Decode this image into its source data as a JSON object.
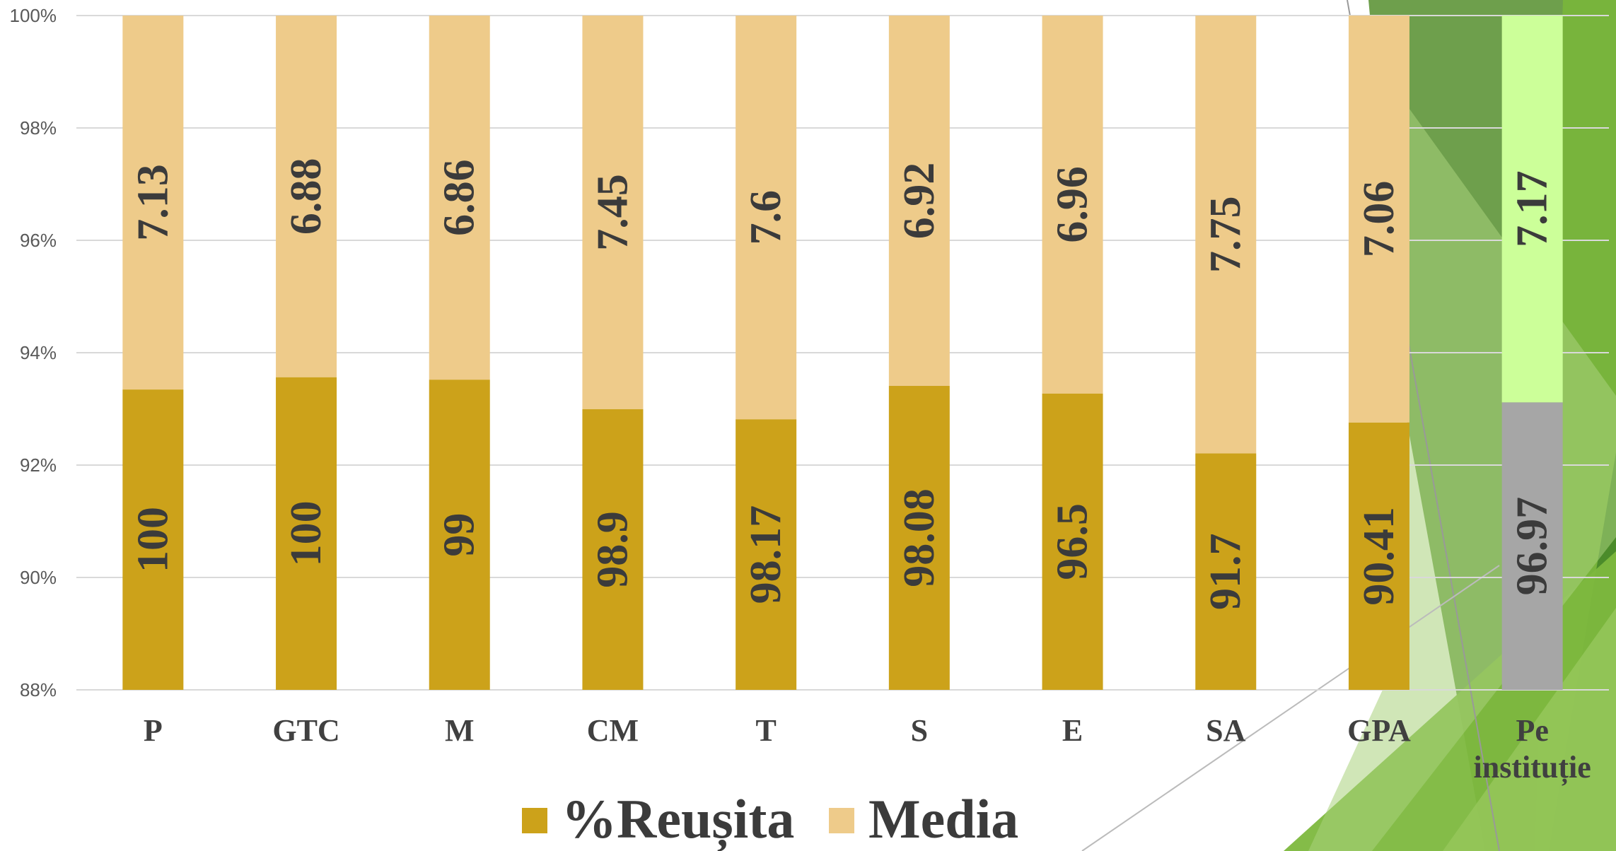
{
  "chart_data": {
    "type": "bar",
    "stacked": "percent",
    "categories": [
      "P",
      "GTC",
      "M",
      "CM",
      "T",
      "S",
      "E",
      "SA",
      "GPA",
      "Pe instituție"
    ],
    "series": [
      {
        "name": "%Reușita",
        "values": [
          100,
          100,
          99,
          98.9,
          98.17,
          98.08,
          96.5,
          91.7,
          90.41,
          96.97
        ]
      },
      {
        "name": "Media",
        "values": [
          7.13,
          6.88,
          6.86,
          7.45,
          7.6,
          6.92,
          6.96,
          7.75,
          7.06,
          7.17
        ]
      }
    ],
    "ylim": [
      88,
      100
    ],
    "yticks": [
      "88%",
      "90%",
      "92%",
      "94%",
      "96%",
      "98%",
      "100%"
    ],
    "legend_position": "bottom",
    "grid": true,
    "colors": {
      "reusita": "#CCA21A",
      "media": "#EECB8A",
      "highlight_reusita": "#A6A6A6",
      "highlight_media": "#CCFF99"
    },
    "highlight_category": "Pe instituție"
  }
}
